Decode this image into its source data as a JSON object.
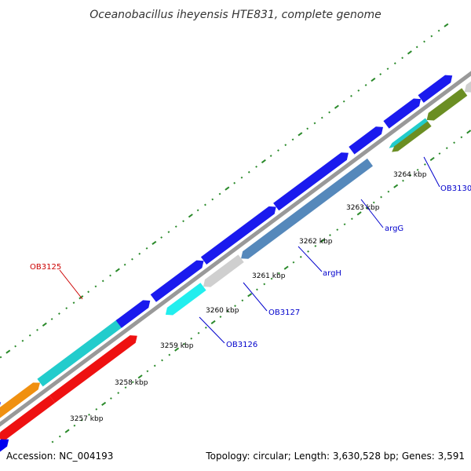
{
  "title": "Oceanobacillus iheyensis HTE831, complete genome",
  "footer": {
    "accession": "Accession: NC_004193",
    "topology": "Topology: circular; Length: 3,630,528 bp; Genes: 3,591"
  },
  "colors": {
    "backbone": "#888888",
    "tick": "#2a8a2a",
    "label_blue": "#0000cc",
    "label_red": "#cc0000"
  },
  "tick_labels": [
    "3257 kbp",
    "3258 kbp",
    "3259 kbp",
    "3260 kbp",
    "3261 kbp",
    "3262 kbp",
    "3263 kbp",
    "3264 kbp"
  ],
  "gene_labels": {
    "OB3125": "OB3125",
    "OB3126": "OB3126",
    "OB3127": "OB3127",
    "argH": "argH",
    "argG": "argG",
    "OB3130": "OB3130"
  }
}
